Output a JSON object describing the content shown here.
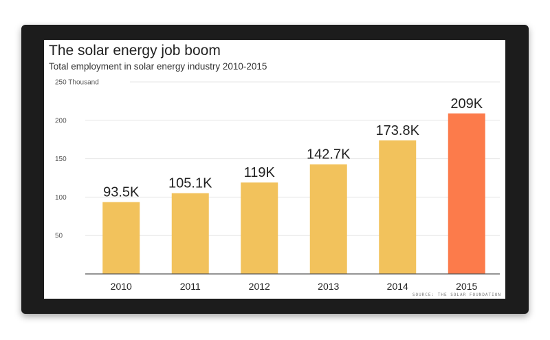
{
  "chart_data": {
    "type": "bar",
    "title": "The solar energy job boom",
    "subtitle": "Total employment in solar energy industry 2010-2015",
    "ylabel": "250 Thousand",
    "xlabel": "",
    "categories": [
      "2010",
      "2011",
      "2012",
      "2013",
      "2014",
      "2015"
    ],
    "values": [
      93.5,
      105.1,
      119,
      142.7,
      173.8,
      209
    ],
    "data_labels": [
      "93.5K",
      "105.1K",
      "119K",
      "142.7K",
      "173.8K",
      "209K"
    ],
    "ylim": [
      0,
      250
    ],
    "yticks": [
      50,
      100,
      150,
      200
    ],
    "ytick_labels": [
      "50",
      "100",
      "150",
      "200"
    ],
    "grid": true,
    "colors": {
      "bar": "#f2c25c",
      "highlight": "#fc7b4b",
      "highlight_index": 5,
      "grid": "#e6e6e6",
      "axis": "#555555"
    },
    "source": "SOURCE: THE SOLAR FOUNDATION"
  }
}
